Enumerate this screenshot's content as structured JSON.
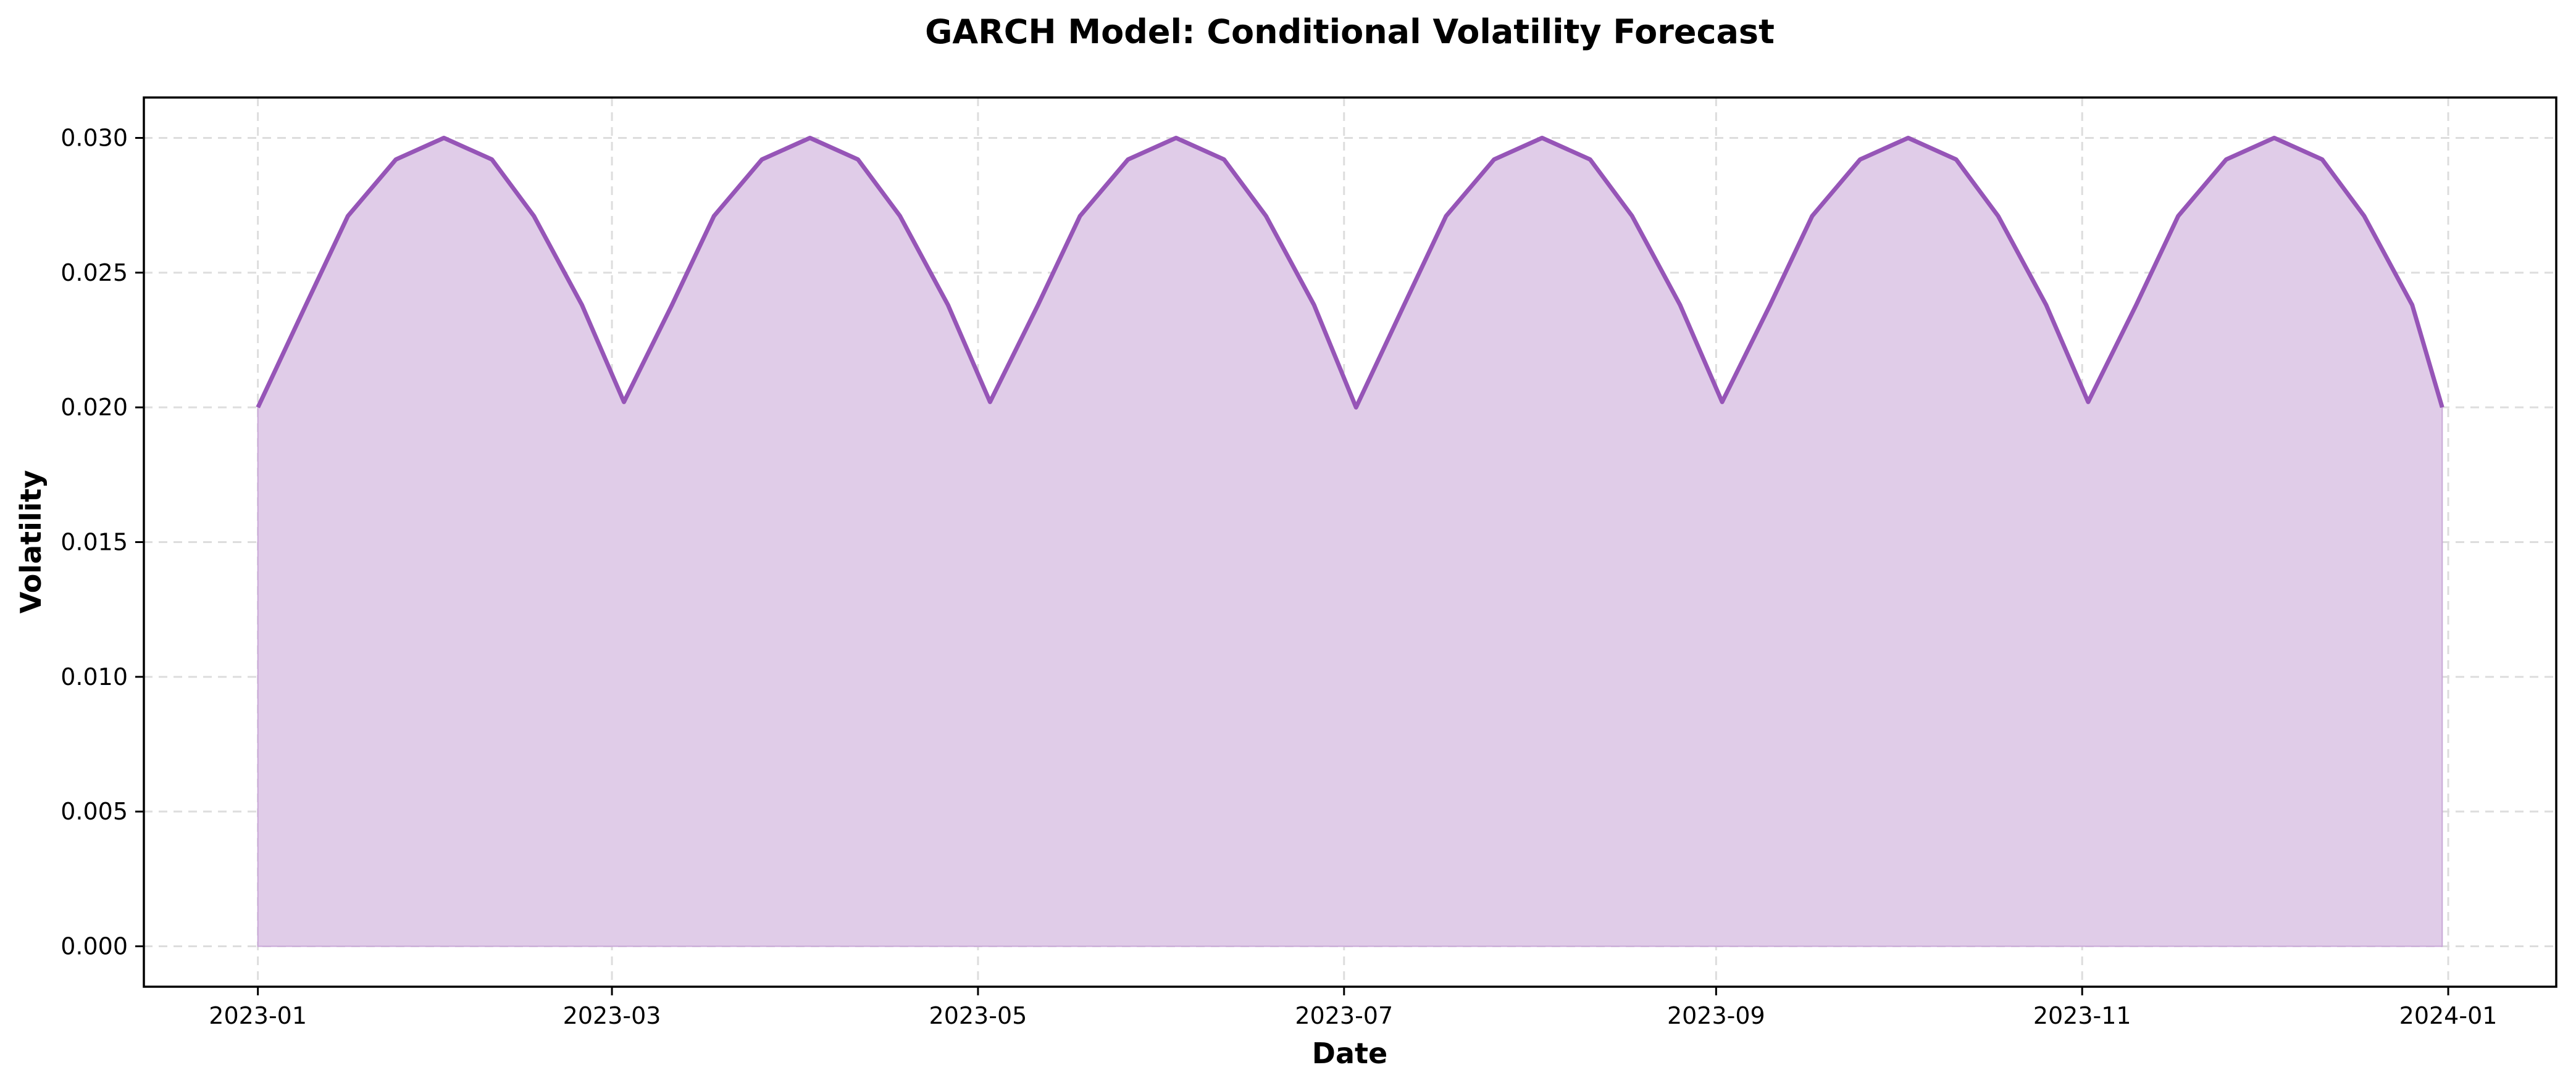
{
  "chart_data": {
    "type": "area",
    "title": "GARCH Model: Conditional Volatility Forecast",
    "xlabel": "Date",
    "ylabel": "Volatility",
    "x_tick_labels": [
      "2023-01",
      "2023-03",
      "2023-05",
      "2023-07",
      "2023-09",
      "2023-11",
      "2024-01"
    ],
    "x_ticks": [
      "2023-01-01",
      "2023-03-01",
      "2023-05-01",
      "2023-07-01",
      "2023-09-01",
      "2023-11-01",
      "2024-01-01"
    ],
    "y_tick_labels": [
      "0.000",
      "0.005",
      "0.010",
      "0.015",
      "0.020",
      "0.025",
      "0.030"
    ],
    "y_ticks": [
      0.0,
      0.005,
      0.01,
      0.015,
      0.02,
      0.025,
      0.03
    ],
    "xlim": [
      "2022-12-13",
      "2024-01-19"
    ],
    "ylim": [
      -0.0015,
      0.0315
    ],
    "grid": true,
    "fill_color": "#e0cce8",
    "line_color": "#9655b7",
    "series": [
      {
        "x": [
          "2023-01-01",
          "2023-01-09",
          "2023-01-16",
          "2023-01-24",
          "2023-02-01",
          "2023-02-09",
          "2023-02-16",
          "2023-02-24",
          "2023-03-03",
          "2023-03-11",
          "2023-03-18",
          "2023-03-26",
          "2023-04-03",
          "2023-04-11",
          "2023-04-18",
          "2023-04-26",
          "2023-05-03",
          "2023-05-11",
          "2023-05-18",
          "2023-05-26",
          "2023-06-03",
          "2023-06-11",
          "2023-06-18",
          "2023-06-26",
          "2023-07-03",
          "2023-07-11",
          "2023-07-18",
          "2023-07-26",
          "2023-08-03",
          "2023-08-11",
          "2023-08-18",
          "2023-08-26",
          "2023-09-02",
          "2023-09-10",
          "2023-09-17",
          "2023-09-25",
          "2023-10-03",
          "2023-10-11",
          "2023-10-18",
          "2023-10-26",
          "2023-11-02",
          "2023-11-10",
          "2023-11-17",
          "2023-11-25",
          "2023-12-03",
          "2023-12-11",
          "2023-12-18",
          "2023-12-26",
          "2023-12-31"
        ],
        "values": [
          0.02,
          0.0238,
          0.0271,
          0.0292,
          0.03,
          0.0292,
          0.0271,
          0.0238,
          0.0202,
          0.0238,
          0.0271,
          0.0292,
          0.03,
          0.0292,
          0.0271,
          0.0238,
          0.0202,
          0.0238,
          0.0271,
          0.0292,
          0.03,
          0.0292,
          0.0271,
          0.0238,
          0.02,
          0.0238,
          0.0271,
          0.0292,
          0.03,
          0.0292,
          0.0271,
          0.0238,
          0.0202,
          0.0238,
          0.0271,
          0.0292,
          0.03,
          0.0292,
          0.0271,
          0.0238,
          0.0202,
          0.0238,
          0.0271,
          0.0292,
          0.03,
          0.0292,
          0.0271,
          0.0238,
          0.02
        ]
      }
    ]
  }
}
